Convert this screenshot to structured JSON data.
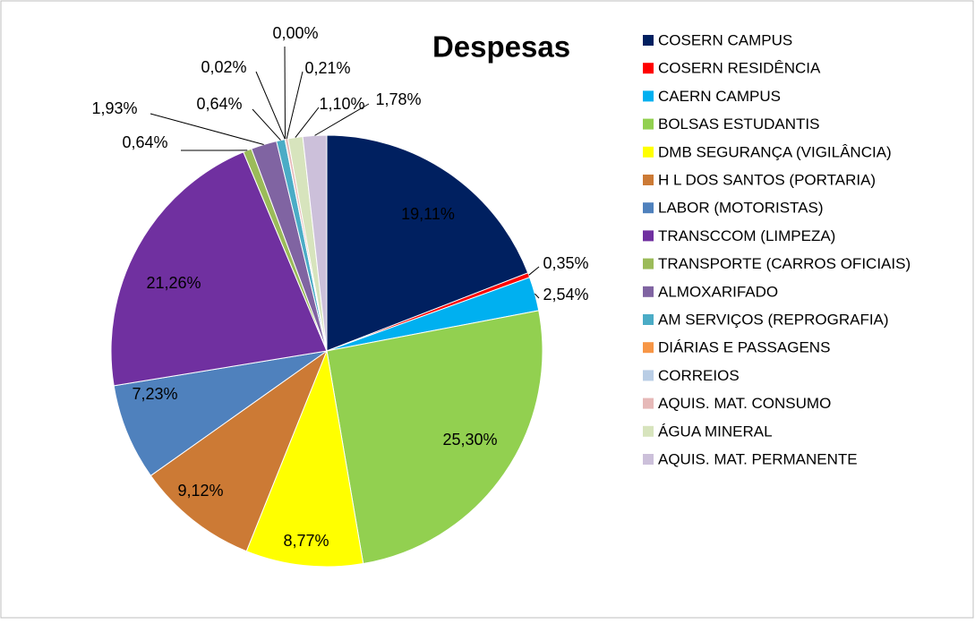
{
  "chart_data": {
    "type": "pie",
    "title": "Despesas",
    "categories": [
      "COSERN CAMPUS",
      "COSERN RESIDÊNCIA",
      "CAERN CAMPUS",
      "BOLSAS ESTUDANTIS",
      "DMB SEGURANÇA (VIGILÂNCIA)",
      "H L DOS SANTOS (PORTARIA)",
      "LABOR (MOTORISTAS)",
      "TRANSCCOM (LIMPEZA)",
      "TRANSPORTE (CARROS OFICIAIS)",
      "ALMOXARIFADO",
      "AM SERVIÇOS (REPROGRAFIA)",
      "DIÁRIAS E PASSAGENS",
      "CORREIOS",
      "AQUIS. MAT. CONSUMO",
      "ÁGUA MINERAL",
      "AQUIS. MAT. PERMANENTE"
    ],
    "values": [
      19.11,
      0.35,
      2.54,
      25.3,
      8.77,
      9.12,
      7.23,
      21.26,
      0.64,
      1.93,
      0.64,
      0.02,
      0.0,
      0.21,
      1.1,
      1.78
    ],
    "value_labels": [
      "19,11%",
      "0,35%",
      "2,54%",
      "25,30%",
      "8,77%",
      "9,12%",
      "7,23%",
      "21,26%",
      "0,64%",
      "1,93%",
      "0,64%",
      "0,02%",
      "0,00%",
      "0,21%",
      "1,10%",
      "1,78%"
    ],
    "colors": [
      "#002060",
      "#ff0000",
      "#00b0f0",
      "#92d050",
      "#ffff00",
      "#cc7a35",
      "#4f81bd",
      "#7030a0",
      "#9bbb59",
      "#8064a2",
      "#4bacc6",
      "#f79646",
      "#b9cde5",
      "#e6b9b8",
      "#d7e4bd",
      "#ccc0da"
    ],
    "legend": "right"
  }
}
